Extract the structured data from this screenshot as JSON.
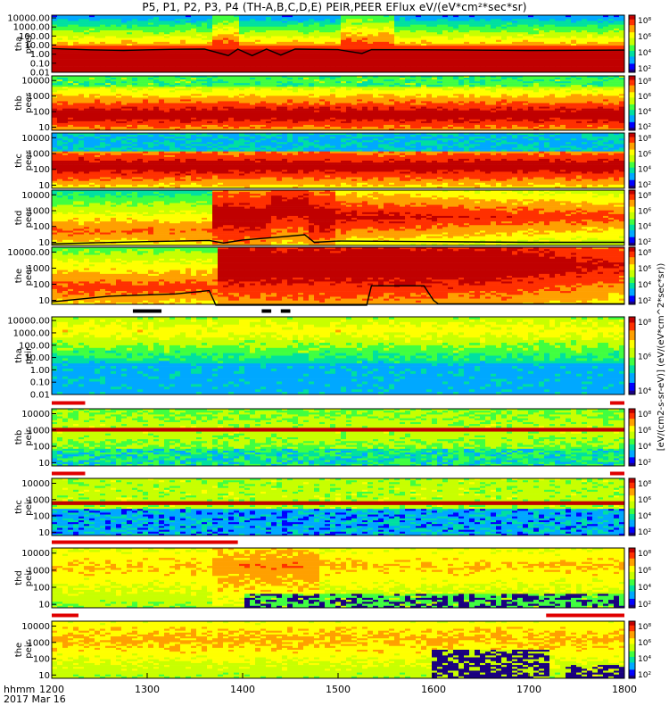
{
  "title": "P5, P1, P2, P3, P4 (TH-A,B,C,D,E) PEIR,PEER EFlux eV/(eV*cm²*sec*sr)",
  "footer": {
    "time_label": "hhmm",
    "date_label": "2017 Mar 16"
  },
  "colorbar_unit_label": "[eV/(cm2-s-sr-eV)] (eV/(eV*cm^2*sec*sr))",
  "colors": {
    "palette": [
      "#1a0080",
      "#0000ff",
      "#00a8ff",
      "#00e0a0",
      "#40ff40",
      "#c8ff00",
      "#ffff00",
      "#ffa000",
      "#ff3000",
      "#c00000"
    ],
    "potential_line": "#000000",
    "flag_red": "#e00000"
  },
  "chart_data": {
    "type": "heatmap",
    "x_axis": {
      "range": [
        1200,
        1800
      ],
      "ticks": [
        1200,
        1300,
        1400,
        1500,
        1600,
        1700,
        1800
      ],
      "unit": "hhmm"
    },
    "panels": [
      {
        "label1": "tha",
        "label2": "peer",
        "yscale": "log",
        "yticks": [
          "10000.00",
          "1000.00",
          "100.00",
          "10.00",
          "1.00",
          "0.10",
          "0.01"
        ],
        "cbar_ticks": [
          "10⁸",
          "10⁶",
          "10⁴",
          "10²"
        ],
        "line_points": [
          [
            1200,
            4.2
          ],
          [
            1240,
            3.0
          ],
          [
            1275,
            2.6
          ],
          [
            1300,
            3.0
          ],
          [
            1330,
            3.5
          ],
          [
            1360,
            3.6
          ],
          [
            1385,
            0.7
          ],
          [
            1395,
            3.6
          ],
          [
            1410,
            0.7
          ],
          [
            1425,
            3.6
          ],
          [
            1440,
            0.8
          ],
          [
            1455,
            3.6
          ],
          [
            1500,
            3.2
          ],
          [
            1525,
            1.2
          ],
          [
            1535,
            3.2
          ],
          [
            1600,
            3.0
          ],
          [
            1700,
            2.5
          ],
          [
            1800,
            2.8
          ]
        ]
      },
      {
        "label1": "thb",
        "label2": "peer",
        "yscale": "log",
        "yticks": [
          "10000",
          "1000",
          "100",
          "10"
        ],
        "cbar_ticks": [
          "10⁸",
          "10⁶",
          "10⁴",
          "10²"
        ],
        "line_points": []
      },
      {
        "label1": "thc",
        "label2": "peer",
        "yscale": "log",
        "yticks": [
          "10000",
          "1000",
          "100",
          "10"
        ],
        "cbar_ticks": [
          "10⁸",
          "10⁶",
          "10⁴",
          "10²"
        ],
        "line_points": []
      },
      {
        "label1": "thd",
        "label2": "peer",
        "yscale": "log",
        "yticks": [
          "10000",
          "1000",
          "100",
          "10"
        ],
        "cbar_ticks": [
          "10⁸",
          "10⁶",
          "10⁴",
          "10²"
        ],
        "line_points": [
          [
            1200,
            8
          ],
          [
            1300,
            11
          ],
          [
            1365,
            13
          ],
          [
            1380,
            9
          ],
          [
            1400,
            14
          ],
          [
            1440,
            22
          ],
          [
            1465,
            30
          ],
          [
            1475,
            10
          ],
          [
            1500,
            12
          ],
          [
            1600,
            11
          ],
          [
            1700,
            10
          ],
          [
            1800,
            10
          ]
        ]
      },
      {
        "label1": "the",
        "label2": "peer",
        "yscale": "log",
        "yticks": [
          "10000.00",
          "1000",
          "100",
          "10"
        ],
        "cbar_ticks": [
          "10⁸",
          "10⁶",
          "10⁴",
          "10²"
        ],
        "line_points": [
          [
            1200,
            8
          ],
          [
            1260,
            18
          ],
          [
            1330,
            25
          ],
          [
            1365,
            40
          ],
          [
            1372,
            5
          ],
          [
            1530,
            5
          ],
          [
            1535,
            80
          ],
          [
            1590,
            80
          ],
          [
            1600,
            10
          ],
          [
            1605,
            6
          ],
          [
            1800,
            6
          ]
        ]
      },
      {
        "label1": "tha",
        "label2": "peir",
        "yscale": "log",
        "yticks": [
          "10000.00",
          "1000.00",
          "100.00",
          "10.00",
          "1.00",
          "0.10",
          "0.01"
        ],
        "cbar_ticks": [
          "10⁸",
          "10⁶",
          "10⁴"
        ],
        "line_points": []
      },
      {
        "label1": "thb",
        "label2": "peir",
        "yscale": "log",
        "yticks": [
          "10000",
          "1000",
          "100",
          "10"
        ],
        "cbar_ticks": [
          "10⁸",
          "10⁶",
          "10⁴",
          "10²"
        ],
        "line_points": []
      },
      {
        "label1": "thc",
        "label2": "peir",
        "yscale": "log",
        "yticks": [
          "10000",
          "1000",
          "100",
          "10"
        ],
        "cbar_ticks": [
          "10⁸",
          "10⁶",
          "10⁴",
          "10²"
        ],
        "line_points": []
      },
      {
        "label1": "thd",
        "label2": "peir",
        "yscale": "log",
        "yticks": [
          "10000",
          "1000",
          "100",
          "10"
        ],
        "cbar_ticks": [
          "10⁸",
          "10⁶",
          "10⁴",
          "10²"
        ],
        "line_points": []
      },
      {
        "label1": "the",
        "label2": "peir",
        "yscale": "log",
        "yticks": [
          "10000",
          "1000",
          "100",
          "10"
        ],
        "cbar_ticks": [
          "10⁸",
          "10⁶",
          "10⁴",
          "10²"
        ],
        "line_points": []
      }
    ],
    "flag_bars": [
      {
        "after_panel": 4,
        "segments": [
          [
            1285,
            1315,
            "black"
          ],
          [
            1420,
            1430,
            "black"
          ],
          [
            1440,
            1450,
            "black"
          ]
        ]
      },
      {
        "after_panel": 5,
        "segments": [
          [
            1200,
            1235,
            "red"
          ],
          [
            1785,
            1800,
            "red"
          ]
        ]
      },
      {
        "after_panel": 6,
        "segments": [
          [
            1200,
            1235,
            "red"
          ],
          [
            1785,
            1800,
            "red"
          ]
        ]
      },
      {
        "after_panel": 7,
        "segments": [
          [
            1200,
            1395,
            "red"
          ]
        ]
      },
      {
        "after_panel": 8,
        "segments": [
          [
            1200,
            1228,
            "red"
          ],
          [
            1718,
            1800,
            "red"
          ]
        ]
      }
    ]
  }
}
